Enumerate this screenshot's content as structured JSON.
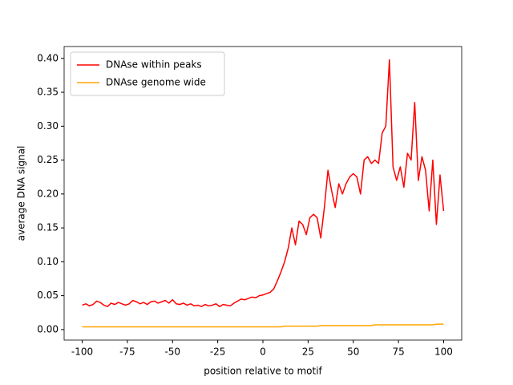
{
  "chart_data": {
    "type": "line",
    "xlabel": "position relative to motif",
    "ylabel": "average DNA signal",
    "x": [
      -100,
      -98,
      -96,
      -94,
      -92,
      -90,
      -88,
      -86,
      -84,
      -82,
      -80,
      -78,
      -76,
      -74,
      -72,
      -70,
      -68,
      -66,
      -64,
      -62,
      -60,
      -58,
      -56,
      -54,
      -52,
      -50,
      -48,
      -46,
      -44,
      -42,
      -40,
      -38,
      -36,
      -34,
      -32,
      -30,
      -28,
      -26,
      -24,
      -22,
      -20,
      -18,
      -16,
      -14,
      -12,
      -10,
      -8,
      -6,
      -4,
      -2,
      0,
      2,
      4,
      6,
      8,
      10,
      12,
      14,
      16,
      18,
      20,
      22,
      24,
      26,
      28,
      30,
      32,
      34,
      36,
      38,
      40,
      42,
      44,
      46,
      48,
      50,
      52,
      54,
      56,
      58,
      60,
      62,
      64,
      66,
      68,
      70,
      72,
      74,
      76,
      78,
      80,
      82,
      84,
      86,
      88,
      90,
      92,
      94,
      96,
      98,
      100
    ],
    "series": [
      {
        "name": "DNAse within peaks",
        "color": "#ff0000",
        "values": [
          0.036,
          0.038,
          0.035,
          0.037,
          0.042,
          0.04,
          0.036,
          0.034,
          0.039,
          0.037,
          0.04,
          0.038,
          0.036,
          0.038,
          0.043,
          0.041,
          0.038,
          0.04,
          0.037,
          0.041,
          0.042,
          0.039,
          0.041,
          0.043,
          0.039,
          0.044,
          0.038,
          0.037,
          0.039,
          0.036,
          0.038,
          0.035,
          0.036,
          0.034,
          0.037,
          0.035,
          0.036,
          0.038,
          0.034,
          0.037,
          0.036,
          0.035,
          0.039,
          0.042,
          0.045,
          0.044,
          0.046,
          0.048,
          0.047,
          0.05,
          0.051,
          0.053,
          0.055,
          0.06,
          0.072,
          0.085,
          0.1,
          0.12,
          0.15,
          0.125,
          0.16,
          0.155,
          0.14,
          0.165,
          0.17,
          0.165,
          0.135,
          0.18,
          0.235,
          0.205,
          0.18,
          0.215,
          0.2,
          0.215,
          0.225,
          0.23,
          0.225,
          0.2,
          0.25,
          0.255,
          0.245,
          0.25,
          0.245,
          0.29,
          0.3,
          0.398,
          0.24,
          0.22,
          0.24,
          0.21,
          0.26,
          0.25,
          0.335,
          0.22,
          0.255,
          0.235,
          0.175,
          0.25,
          0.155,
          0.228,
          0.175
        ]
      },
      {
        "name": "DNAse genome wide",
        "color": "#ffa500",
        "values": [
          0.004,
          0.004,
          0.004,
          0.004,
          0.004,
          0.004,
          0.004,
          0.004,
          0.004,
          0.004,
          0.004,
          0.004,
          0.004,
          0.004,
          0.004,
          0.004,
          0.004,
          0.004,
          0.004,
          0.004,
          0.004,
          0.004,
          0.004,
          0.004,
          0.004,
          0.004,
          0.004,
          0.004,
          0.004,
          0.004,
          0.004,
          0.004,
          0.004,
          0.004,
          0.004,
          0.004,
          0.004,
          0.004,
          0.004,
          0.004,
          0.004,
          0.004,
          0.004,
          0.004,
          0.004,
          0.004,
          0.004,
          0.004,
          0.004,
          0.004,
          0.004,
          0.004,
          0.004,
          0.004,
          0.004,
          0.004,
          0.005,
          0.005,
          0.005,
          0.005,
          0.005,
          0.005,
          0.005,
          0.005,
          0.005,
          0.005,
          0.006,
          0.006,
          0.006,
          0.006,
          0.006,
          0.006,
          0.006,
          0.006,
          0.006,
          0.006,
          0.006,
          0.006,
          0.006,
          0.006,
          0.006,
          0.007,
          0.007,
          0.007,
          0.007,
          0.007,
          0.007,
          0.007,
          0.007,
          0.007,
          0.007,
          0.007,
          0.007,
          0.007,
          0.007,
          0.007,
          0.007,
          0.007,
          0.008,
          0.008,
          0.008
        ]
      }
    ],
    "xlim": [
      -110,
      110
    ],
    "ylim": [
      -0.0155,
      0.4175
    ],
    "xticks": [
      -100,
      -75,
      -50,
      -25,
      0,
      25,
      50,
      75,
      100
    ],
    "yticks": [
      {
        "value": 0,
        "label": "0.00"
      },
      {
        "value": 0.05,
        "label": "0.05"
      },
      {
        "value": 0.1,
        "label": "0.10"
      },
      {
        "value": 0.15,
        "label": "0.15"
      },
      {
        "value": 0.2,
        "label": "0.20"
      },
      {
        "value": 0.25,
        "label": "0.25"
      },
      {
        "value": 0.3,
        "label": "0.30"
      },
      {
        "value": 0.35,
        "label": "0.35"
      },
      {
        "value": 0.4,
        "label": "0.40"
      }
    ],
    "legend": "upper left",
    "grid": false
  }
}
